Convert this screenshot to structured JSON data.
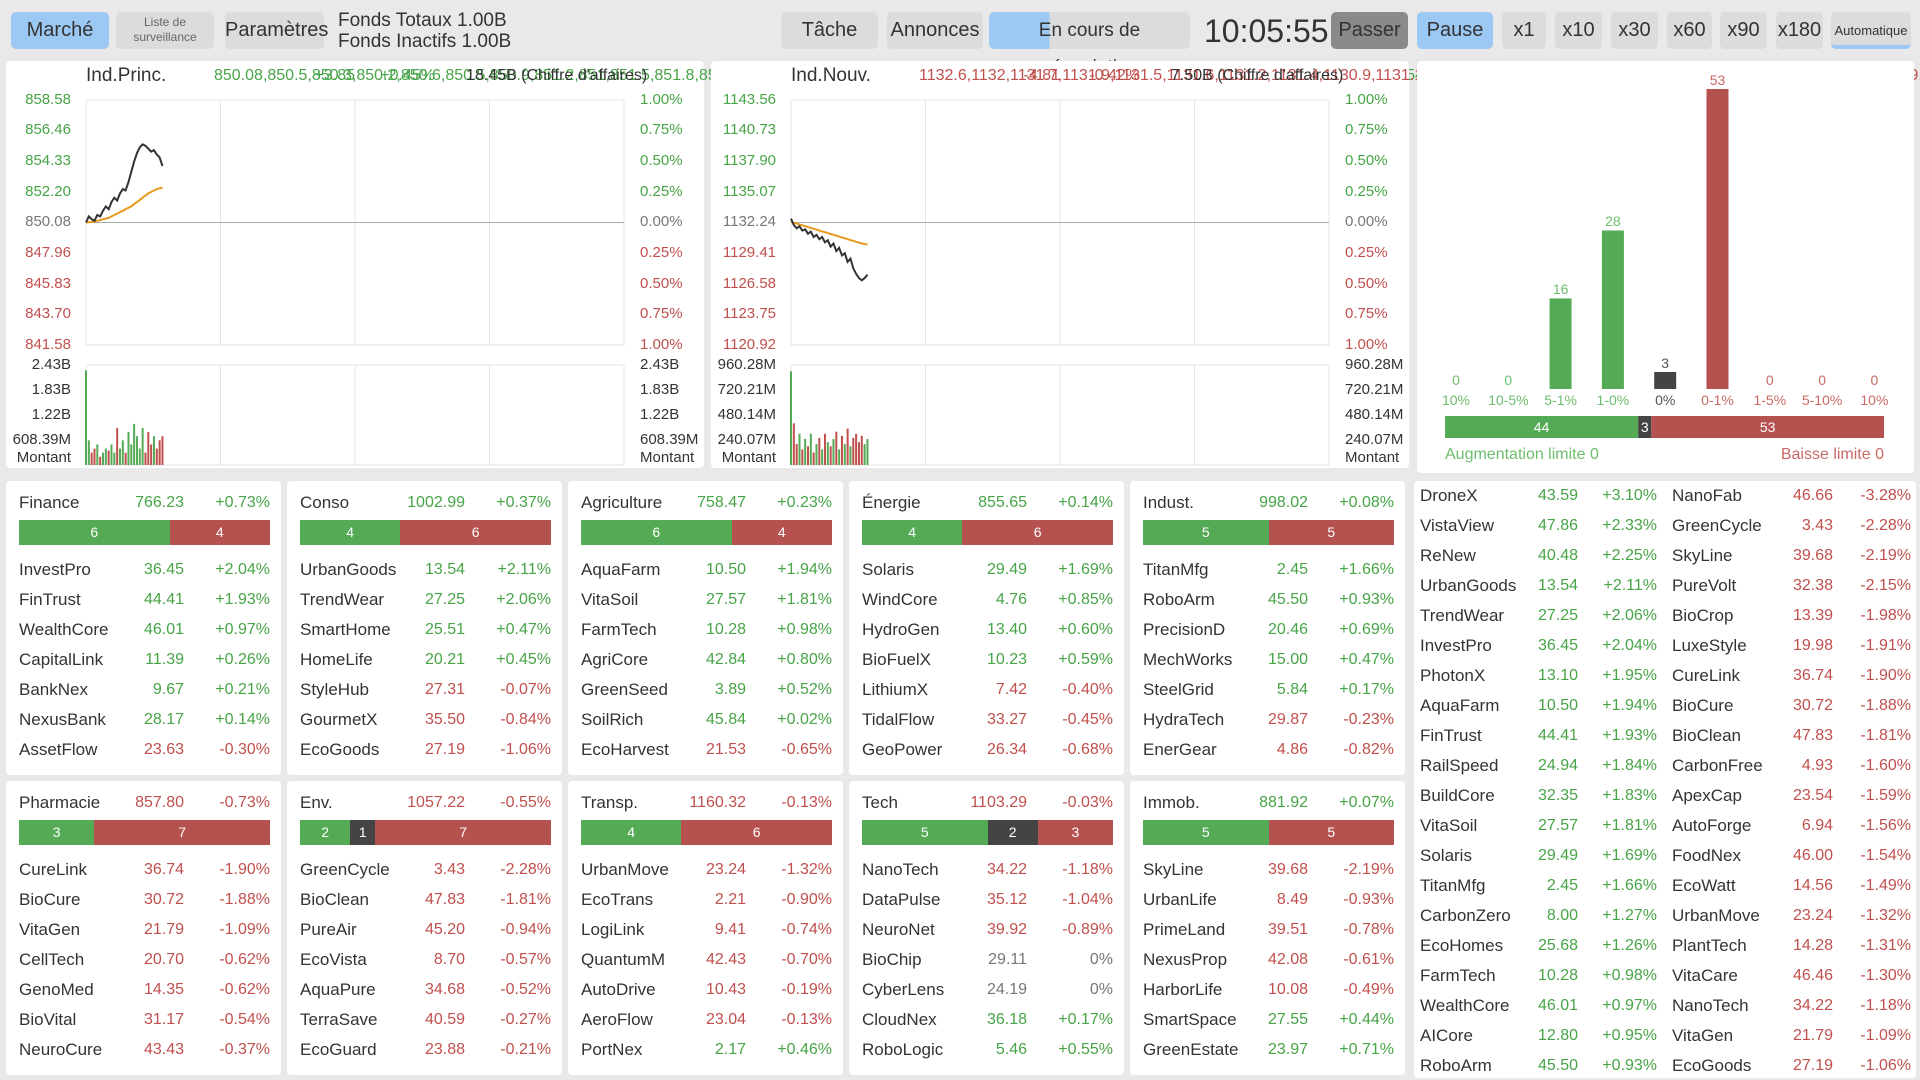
{
  "toolbar": {
    "left": [
      "Marché",
      "Liste de surveillance",
      "Paramètres"
    ],
    "funds": [
      "Fonds Totaux 1.00B",
      "Fonds Inactifs 1.00B"
    ],
    "middle": [
      "Tâche",
      "Annonces",
      "En cours de négociation"
    ],
    "clock": "10:05:55",
    "controls": [
      "Passer",
      "Pause",
      "x1",
      "x10",
      "x30",
      "x60",
      "x90",
      "x180",
      "Automatique"
    ]
  },
  "indices": [
    {
      "name": "Ind.Princ.",
      "price": [
        850.08,
        850.5,
        850.3,
        850.2,
        850.6,
        850.5,
        850.9,
        851.2,
        851.0,
        851.5,
        851.8,
        851.6,
        852.1,
        852.4,
        852.3,
        852.9,
        853.6,
        854.3,
        854.9,
        855.3,
        855.5,
        855.4,
        855.2,
        855.0,
        855.1,
        854.8,
        854.6,
        854.0
      ],
      "change": "+3.85",
      "percent": "+0.45%",
      "turnover": "18.45B (Chiffre d'affaires)",
      "left_ticks": [
        "858.58",
        "856.46",
        "854.33",
        "852.20",
        "850.08",
        "847.96",
        "845.83",
        "843.70",
        "841.58"
      ],
      "right_ticks": [
        "1.00%",
        "0.75%",
        "0.50%",
        "0.25%",
        "0.00%",
        "0.25%",
        "0.50%",
        "0.75%",
        "1.00%"
      ],
      "ylim": [
        841.58,
        858.58
      ],
      "xlim": [
        0,
        190
      ],
      "average": [
        850.08,
        850.1,
        850.12,
        850.15,
        850.2,
        850.25,
        850.3,
        850.35,
        850.4,
        850.5,
        850.6,
        850.7,
        850.8,
        850.9,
        851.0,
        851.1,
        851.2,
        851.35,
        851.5,
        851.65,
        851.8,
        851.95,
        852.1,
        852.2,
        852.3,
        852.4,
        852.45,
        852.5
      ],
      "volume_ticks": [
        "2.43B",
        "1.83B",
        "1.22B",
        "608.39M"
      ],
      "volume_label": "Montant",
      "volume_ylim": [
        0,
        2.43
      ],
      "volume": [
        2.3,
        0.6,
        0.3,
        0.4,
        0.5,
        0.2,
        0.3,
        0.4,
        0.35,
        0.5,
        0.3,
        0.9,
        0.4,
        0.6,
        0.3,
        0.8,
        0.5,
        1.0,
        0.7,
        0.4,
        0.9,
        0.3,
        0.8,
        0.5,
        0.7,
        0.4,
        0.6,
        0.7
      ]
    },
    {
      "name": "Ind.Nouv.",
      "price": [
        1132.6,
        1132.0,
        1131.7,
        1131.9,
        1131.5,
        1131.6,
        1131.2,
        1131.4,
        1130.9,
        1131.1,
        1130.7,
        1130.9,
        1130.4,
        1130.6,
        1130.0,
        1130.3,
        1129.6,
        1129.9,
        1129.2,
        1129.4,
        1128.6,
        1128.9,
        1128.0,
        1127.5,
        1127.1,
        1126.9,
        1127.1,
        1127.43
      ],
      "change": "-4.81",
      "percent": "-0.42%",
      "turnover": "7.50B (Chiffre d'affaires)",
      "left_ticks": [
        "1143.56",
        "1140.73",
        "1137.90",
        "1135.07",
        "1132.24",
        "1129.41",
        "1126.58",
        "1123.75",
        "1120.92"
      ],
      "right_ticks": [
        "1.00%",
        "0.75%",
        "0.50%",
        "0.25%",
        "0.00%",
        "0.25%",
        "0.50%",
        "0.75%",
        "1.00%"
      ],
      "ylim": [
        1120.92,
        1143.56
      ],
      "xlim": [
        0,
        190
      ],
      "average": [
        1132.3,
        1132.22,
        1132.14,
        1132.06,
        1131.98,
        1131.9,
        1131.82,
        1131.74,
        1131.66,
        1131.58,
        1131.5,
        1131.42,
        1131.34,
        1131.26,
        1131.18,
        1131.1,
        1131.02,
        1130.94,
        1130.86,
        1130.78,
        1130.7,
        1130.62,
        1130.54,
        1130.46,
        1130.38,
        1130.3,
        1130.25,
        1130.2
      ],
      "volume_ticks": [
        "960.28M",
        "720.21M",
        "480.14M",
        "240.07M"
      ],
      "volume_label": "Montant",
      "volume_ylim": [
        0,
        960.28
      ],
      "volume": [
        900,
        400,
        200,
        300,
        150,
        250,
        180,
        300,
        120,
        200,
        260,
        150,
        300,
        220,
        180,
        250,
        320,
        150,
        280,
        200,
        350,
        180,
        260,
        300,
        220,
        280,
        200,
        250
      ]
    }
  ],
  "distribution": {
    "categories": [
      "10%",
      "10-5%",
      "5-1%",
      "1-0%",
      "0%",
      "0-1%",
      "1-5%",
      "5-10%",
      "10%"
    ],
    "values": [
      0,
      0,
      16,
      28,
      3,
      53,
      0,
      0,
      0
    ],
    "ylim": [
      0,
      53
    ],
    "colors": [
      "#55aa55",
      "#55aa55",
      "#55aa55",
      "#55aa55",
      "#444444",
      "#b5524f",
      "#b5524f",
      "#b5524f",
      "#b5524f"
    ],
    "summary": {
      "values": [
        44,
        3,
        53
      ],
      "colors": [
        "#55aa55",
        "#444444",
        "#b5524f"
      ]
    },
    "limit_up": "Augmentation limite 0",
    "limit_down": "Baisse limite 0"
  },
  "sectors": [
    {
      "name": "Finance",
      "index": "766.23",
      "percent": "+0.73%",
      "up": 6,
      "down": 4,
      "stocks": [
        [
          "InvestPro",
          "36.45",
          "+2.04%"
        ],
        [
          "FinTrust",
          "44.41",
          "+1.93%"
        ],
        [
          "WealthCore",
          "46.01",
          "+0.97%"
        ],
        [
          "CapitalLink",
          "11.39",
          "+0.26%"
        ],
        [
          "BankNex",
          "9.67",
          "+0.21%"
        ],
        [
          "NexusBank",
          "28.17",
          "+0.14%"
        ],
        [
          "AssetFlow",
          "23.63",
          "-0.30%"
        ]
      ]
    },
    {
      "name": "Conso",
      "index": "1002.99",
      "percent": "+0.37%",
      "up": 4,
      "down": 6,
      "stocks": [
        [
          "UrbanGoods",
          "13.54",
          "+2.11%"
        ],
        [
          "TrendWear",
          "27.25",
          "+2.06%"
        ],
        [
          "SmartHome",
          "25.51",
          "+0.47%"
        ],
        [
          "HomeLife",
          "20.21",
          "+0.45%"
        ],
        [
          "StyleHub",
          "27.31",
          "-0.07%"
        ],
        [
          "GourmetX",
          "35.50",
          "-0.84%"
        ],
        [
          "EcoGoods",
          "27.19",
          "-1.06%"
        ]
      ]
    },
    {
      "name": "Agriculture",
      "index": "758.47",
      "percent": "+0.23%",
      "up": 6,
      "down": 4,
      "stocks": [
        [
          "AquaFarm",
          "10.50",
          "+1.94%"
        ],
        [
          "VitaSoil",
          "27.57",
          "+1.81%"
        ],
        [
          "FarmTech",
          "10.28",
          "+0.98%"
        ],
        [
          "AgriCore",
          "42.84",
          "+0.80%"
        ],
        [
          "GreenSeed",
          "3.89",
          "+0.52%"
        ],
        [
          "SoilRich",
          "45.84",
          "+0.02%"
        ],
        [
          "EcoHarvest",
          "21.53",
          "-0.65%"
        ]
      ]
    },
    {
      "name": "Énergie",
      "index": "855.65",
      "percent": "+0.14%",
      "up": 4,
      "down": 6,
      "stocks": [
        [
          "Solaris",
          "29.49",
          "+1.69%"
        ],
        [
          "WindCore",
          "4.76",
          "+0.85%"
        ],
        [
          "HydroGen",
          "13.40",
          "+0.60%"
        ],
        [
          "BioFuelX",
          "10.23",
          "+0.59%"
        ],
        [
          "LithiumX",
          "7.42",
          "-0.40%"
        ],
        [
          "TidalFlow",
          "33.27",
          "-0.45%"
        ],
        [
          "GeoPower",
          "26.34",
          "-0.68%"
        ]
      ]
    },
    {
      "name": "Indust.",
      "index": "998.02",
      "percent": "+0.08%",
      "up": 5,
      "down": 5,
      "stocks": [
        [
          "TitanMfg",
          "2.45",
          "+1.66%"
        ],
        [
          "RoboArm",
          "45.50",
          "+0.93%"
        ],
        [
          "PrecisionD",
          "20.46",
          "+0.69%"
        ],
        [
          "MechWorks",
          "15.00",
          "+0.47%"
        ],
        [
          "SteelGrid",
          "5.84",
          "+0.17%"
        ],
        [
          "HydraTech",
          "29.87",
          "-0.23%"
        ],
        [
          "EnerGear",
          "4.86",
          "-0.82%"
        ]
      ]
    },
    {
      "name": "Pharmacie",
      "index": "857.80",
      "percent": "-0.73%",
      "up": 3,
      "down": 7,
      "stocks": [
        [
          "CureLink",
          "36.74",
          "-1.90%"
        ],
        [
          "BioCure",
          "30.72",
          "-1.88%"
        ],
        [
          "VitaGen",
          "21.79",
          "-1.09%"
        ],
        [
          "CellTech",
          "20.70",
          "-0.62%"
        ],
        [
          "GenoMed",
          "14.35",
          "-0.62%"
        ],
        [
          "BioVital",
          "31.17",
          "-0.54%"
        ],
        [
          "NeuroCure",
          "43.43",
          "-0.37%"
        ]
      ]
    },
    {
      "name": "Env.",
      "index": "1057.22",
      "percent": "-0.55%",
      "up": 2,
      "flat": 1,
      "down": 7,
      "stocks": [
        [
          "GreenCycle",
          "3.43",
          "-2.28%"
        ],
        [
          "BioClean",
          "47.83",
          "-1.81%"
        ],
        [
          "PureAir",
          "45.20",
          "-0.94%"
        ],
        [
          "EcoVista",
          "8.70",
          "-0.57%"
        ],
        [
          "AquaPure",
          "34.68",
          "-0.52%"
        ],
        [
          "TerraSave",
          "40.59",
          "-0.27%"
        ],
        [
          "EcoGuard",
          "23.88",
          "-0.21%"
        ]
      ]
    },
    {
      "name": "Transp.",
      "index": "1160.32",
      "percent": "-0.13%",
      "up": 4,
      "down": 6,
      "stocks": [
        [
          "UrbanMove",
          "23.24",
          "-1.32%"
        ],
        [
          "EcoTrans",
          "2.21",
          "-0.90%"
        ],
        [
          "LogiLink",
          "9.41",
          "-0.74%"
        ],
        [
          "QuantumM",
          "42.43",
          "-0.70%"
        ],
        [
          "AutoDrive",
          "10.43",
          "-0.19%"
        ],
        [
          "AeroFlow",
          "23.04",
          "-0.13%"
        ],
        [
          "PortNex",
          "2.17",
          "+0.46%"
        ]
      ]
    },
    {
      "name": "Tech",
      "index": "1103.29",
      "percent": "-0.03%",
      "up": 5,
      "flat": 2,
      "down": 3,
      "stocks": [
        [
          "NanoTech",
          "34.22",
          "-1.18%"
        ],
        [
          "DataPulse",
          "35.12",
          "-1.04%"
        ],
        [
          "NeuroNet",
          "39.92",
          "-0.89%"
        ],
        [
          "BioChip",
          "29.11",
          "0%"
        ],
        [
          "CyberLens",
          "24.19",
          "0%"
        ],
        [
          "CloudNex",
          "36.18",
          "+0.17%"
        ],
        [
          "RoboLogic",
          "5.46",
          "+0.55%"
        ]
      ]
    },
    {
      "name": "Immob.",
      "index": "881.92",
      "percent": "+0.07%",
      "up": 5,
      "down": 5,
      "stocks": [
        [
          "SkyLine",
          "39.68",
          "-2.19%"
        ],
        [
          "UrbanLife",
          "8.49",
          "-0.93%"
        ],
        [
          "PrimeLand",
          "39.51",
          "-0.78%"
        ],
        [
          "NexusProp",
          "42.08",
          "-0.61%"
        ],
        [
          "HarborLife",
          "10.08",
          "-0.49%"
        ],
        [
          "SmartSpace",
          "27.55",
          "+0.44%"
        ],
        [
          "GreenEstate",
          "23.97",
          "+0.71%"
        ]
      ]
    }
  ],
  "movers": {
    "gainers": [
      [
        "DroneX",
        "43.59",
        "+3.10%"
      ],
      [
        "VistaView",
        "47.86",
        "+2.33%"
      ],
      [
        "ReNew",
        "40.48",
        "+2.25%"
      ],
      [
        "UrbanGoods",
        "13.54",
        "+2.11%"
      ],
      [
        "TrendWear",
        "27.25",
        "+2.06%"
      ],
      [
        "InvestPro",
        "36.45",
        "+2.04%"
      ],
      [
        "PhotonX",
        "13.10",
        "+1.95%"
      ],
      [
        "AquaFarm",
        "10.50",
        "+1.94%"
      ],
      [
        "FinTrust",
        "44.41",
        "+1.93%"
      ],
      [
        "RailSpeed",
        "24.94",
        "+1.84%"
      ],
      [
        "BuildCore",
        "32.35",
        "+1.83%"
      ],
      [
        "VitaSoil",
        "27.57",
        "+1.81%"
      ],
      [
        "Solaris",
        "29.49",
        "+1.69%"
      ],
      [
        "TitanMfg",
        "2.45",
        "+1.66%"
      ],
      [
        "CarbonZero",
        "8.00",
        "+1.27%"
      ],
      [
        "EcoHomes",
        "25.68",
        "+1.26%"
      ],
      [
        "FarmTech",
        "10.28",
        "+0.98%"
      ],
      [
        "WealthCore",
        "46.01",
        "+0.97%"
      ],
      [
        "AICore",
        "12.80",
        "+0.95%"
      ],
      [
        "RoboArm",
        "45.50",
        "+0.93%"
      ]
    ],
    "losers": [
      [
        "NanoFab",
        "46.66",
        "-3.28%"
      ],
      [
        "GreenCycle",
        "3.43",
        "-2.28%"
      ],
      [
        "SkyLine",
        "39.68",
        "-2.19%"
      ],
      [
        "PureVolt",
        "32.38",
        "-2.15%"
      ],
      [
        "BioCrop",
        "13.39",
        "-1.98%"
      ],
      [
        "LuxeStyle",
        "19.98",
        "-1.91%"
      ],
      [
        "CureLink",
        "36.74",
        "-1.90%"
      ],
      [
        "BioCure",
        "30.72",
        "-1.88%"
      ],
      [
        "BioClean",
        "47.83",
        "-1.81%"
      ],
      [
        "CarbonFree",
        "4.93",
        "-1.60%"
      ],
      [
        "ApexCap",
        "23.54",
        "-1.59%"
      ],
      [
        "AutoForge",
        "6.94",
        "-1.56%"
      ],
      [
        "FoodNex",
        "46.00",
        "-1.54%"
      ],
      [
        "EcoWatt",
        "14.56",
        "-1.49%"
      ],
      [
        "UrbanMove",
        "23.24",
        "-1.32%"
      ],
      [
        "PlantTech",
        "14.28",
        "-1.31%"
      ],
      [
        "VitaCare",
        "46.46",
        "-1.30%"
      ],
      [
        "NanoTech",
        "34.22",
        "-1.18%"
      ],
      [
        "VitaGen",
        "21.79",
        "-1.09%"
      ],
      [
        "EcoGoods",
        "27.19",
        "-1.06%"
      ]
    ]
  }
}
